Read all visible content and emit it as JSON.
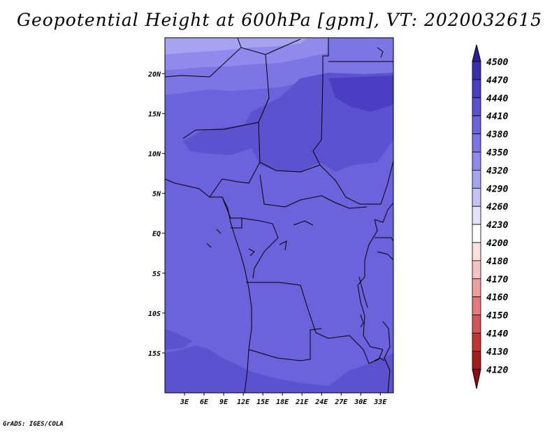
{
  "title": "Geopotential Height at 600hPa [gpm], VT: 2020032615",
  "credit": "GrADS: IGES/COLA",
  "map": {
    "lon_range": [
      0,
      35
    ],
    "lat_range": [
      -20,
      24.5
    ],
    "xticks": [
      {
        "lon": 3,
        "label": "3E"
      },
      {
        "lon": 6,
        "label": "6E"
      },
      {
        "lon": 9,
        "label": "9E"
      },
      {
        "lon": 12,
        "label": "12E"
      },
      {
        "lon": 15,
        "label": "15E"
      },
      {
        "lon": 18,
        "label": "18E"
      },
      {
        "lon": 21,
        "label": "21E"
      },
      {
        "lon": 24,
        "label": "24E"
      },
      {
        "lon": 27,
        "label": "27E"
      },
      {
        "lon": 30,
        "label": "30E"
      },
      {
        "lon": 33,
        "label": "33E"
      }
    ],
    "yticks": [
      {
        "lat": 20,
        "label": "20N"
      },
      {
        "lat": 15,
        "label": "15N"
      },
      {
        "lat": 10,
        "label": "10N"
      },
      {
        "lat": 5,
        "label": "5N"
      },
      {
        "lat": 0,
        "label": "EQ"
      },
      {
        "lat": -5,
        "label": "5S"
      },
      {
        "lat": -10,
        "label": "10S"
      },
      {
        "lat": -15,
        "label": "15S"
      }
    ]
  },
  "colorbar": {
    "levels": [
      "4500",
      "4470",
      "4440",
      "4410",
      "4380",
      "4350",
      "4320",
      "4290",
      "4260",
      "4230",
      "4200",
      "4180",
      "4170",
      "4160",
      "4150",
      "4140",
      "4130",
      "4120"
    ],
    "colors": [
      "#2c1f96",
      "#3a2db0",
      "#4a3fc3",
      "#5a52cf",
      "#6b63db",
      "#7c76e4",
      "#8f8aec",
      "#a6a3f1",
      "#c4c2f6",
      "#e4e3fb",
      "#ffffff",
      "#fbe0e0",
      "#f6c2c2",
      "#eea0a0",
      "#e27b7b",
      "#d45555",
      "#c43232",
      "#a81b1b",
      "#8c1010"
    ],
    "field_colors": {
      "h4350": "#7c76e4",
      "h4380": "#6b63db",
      "h4410": "#5a52cf",
      "h4440": "#4a3fc3",
      "h4320": "#8f8aec",
      "h4290": "#a6a3f1"
    }
  }
}
